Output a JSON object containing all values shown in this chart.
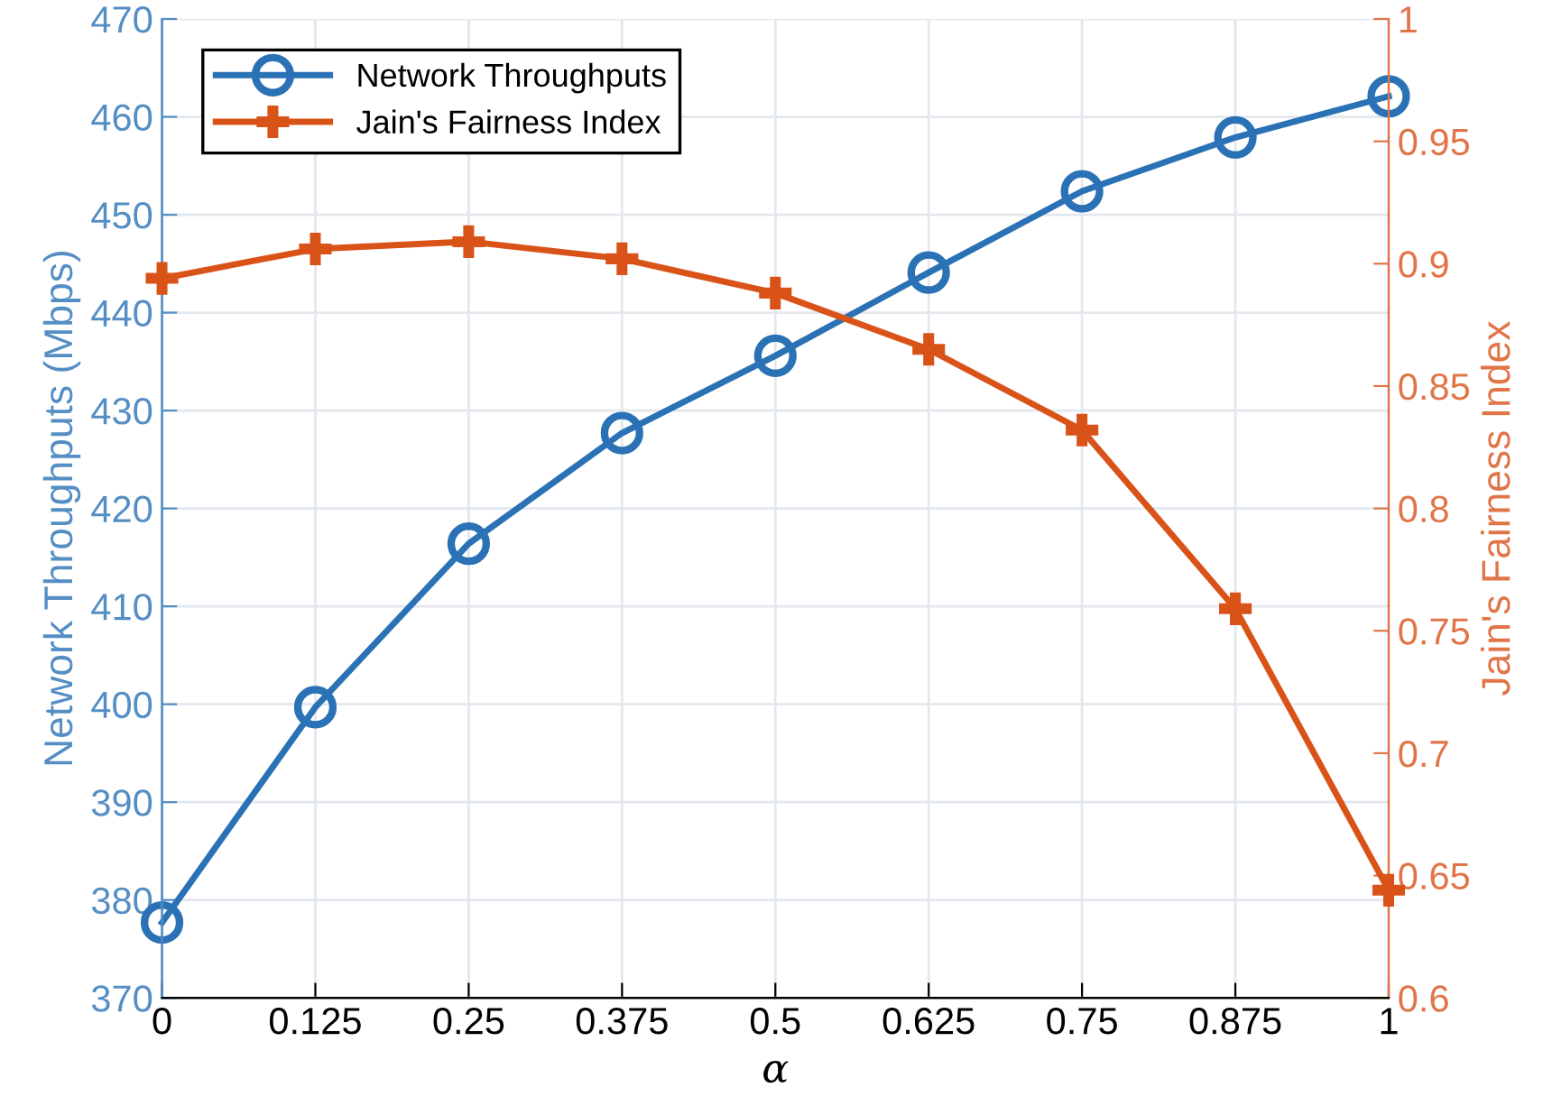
{
  "chart_data": {
    "type": "line",
    "xlabel": "α",
    "ylabel": "Network Throughputs (Mbps)",
    "y2label": "Jain's Fairness Index",
    "x": [
      0,
      0.125,
      0.25,
      0.375,
      0.5,
      0.625,
      0.75,
      0.875,
      1
    ],
    "series": [
      {
        "name": "Network Throughputs",
        "color": "#2a72b5",
        "marker": "circle",
        "values": [
          377.7,
          399.7,
          416.4,
          427.7,
          435.6,
          444.1,
          452.4,
          457.9,
          462.1
        ]
      },
      {
        "name": "Jain's Fairness Index",
        "color": "#d95319",
        "marker": "cross",
        "axis": "y2",
        "values": [
          0.894,
          0.906,
          0.909,
          0.902,
          0.888,
          0.865,
          0.832,
          0.759,
          0.644
        ]
      }
    ],
    "xlim": [
      0,
      1
    ],
    "xticks": [
      0,
      0.125,
      0.25,
      0.375,
      0.5,
      0.625,
      0.75,
      0.875,
      1
    ],
    "ylim": [
      370,
      470
    ],
    "yticks": [
      370,
      380,
      390,
      400,
      410,
      420,
      430,
      440,
      450,
      460,
      470
    ],
    "y2lim": [
      0.6,
      1
    ],
    "y2ticks": [
      0.6,
      0.65,
      0.7,
      0.75,
      0.8,
      0.85,
      0.9,
      0.95,
      1
    ],
    "grid": true,
    "legend": "top left",
    "line_style": "solid"
  }
}
